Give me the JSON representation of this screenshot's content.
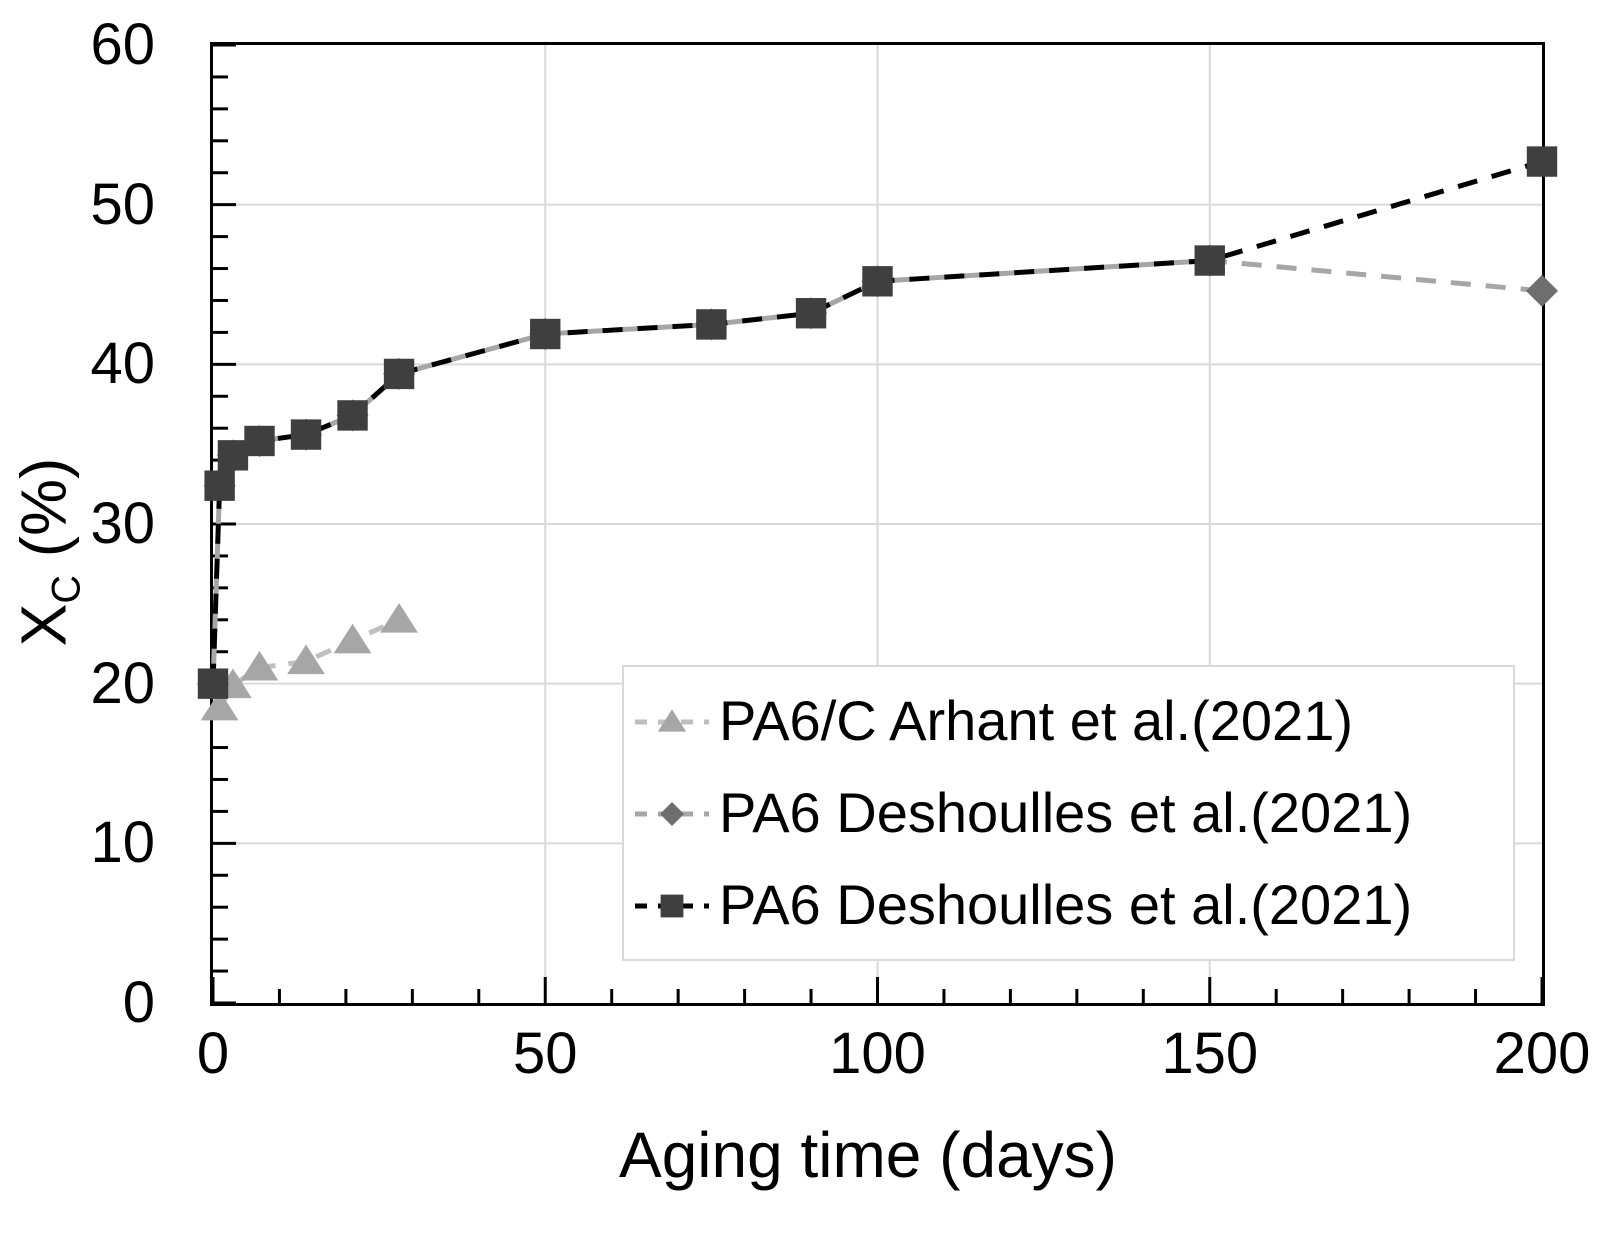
{
  "chart_data": {
    "type": "line",
    "title": "",
    "xlabel": "Aging time (days)",
    "ylabel": {
      "main": "X",
      "sub": "C",
      "rest": " (%)"
    },
    "xlim": [
      0,
      200
    ],
    "ylim": [
      0,
      60
    ],
    "x_major_ticks": [
      0,
      50,
      100,
      150,
      200
    ],
    "x_minor_step": 10,
    "y_major_ticks": [
      0,
      10,
      20,
      30,
      40,
      50,
      60
    ],
    "y_minor_step": 2,
    "grid": {
      "color": "#d9d9d9",
      "x_lines": [
        50,
        100,
        150
      ],
      "y_lines": [
        10,
        20,
        30,
        40,
        50
      ]
    },
    "frame_color": "#000000",
    "legend_position": "inside-lower-right",
    "series": [
      {
        "name": "PA6/C Arhant et al.(2021)",
        "marker": "triangle",
        "marker_color": "#a6a6a6",
        "line_color": "#bfbfbf",
        "points": [
          [
            1,
            18.5
          ],
          [
            3,
            19.9
          ],
          [
            7,
            21.0
          ],
          [
            14,
            21.4
          ],
          [
            21,
            22.7
          ],
          [
            28,
            24.0
          ]
        ]
      },
      {
        "name": "PA6 Deshoulles et al.(2021)",
        "marker": "diamond",
        "marker_color": "#6e6e6e",
        "line_color": "#a6a6a6",
        "points": [
          [
            0,
            20.0
          ],
          [
            1,
            32.4
          ],
          [
            3,
            34.3
          ],
          [
            7,
            35.2
          ],
          [
            14,
            35.6
          ],
          [
            21,
            36.8
          ],
          [
            28,
            39.4
          ],
          [
            50,
            41.9
          ],
          [
            75,
            42.5
          ],
          [
            90,
            43.2
          ],
          [
            100,
            45.2
          ],
          [
            150,
            46.5
          ],
          [
            200,
            44.6
          ]
        ]
      },
      {
        "name": "PA6 Deshoulles et al.(2021)",
        "marker": "square",
        "marker_color": "#3f3f3f",
        "line_color": "#000000",
        "points": [
          [
            0,
            20.0
          ],
          [
            1,
            32.4
          ],
          [
            3,
            34.3
          ],
          [
            7,
            35.2
          ],
          [
            14,
            35.6
          ],
          [
            21,
            36.8
          ],
          [
            28,
            39.4
          ],
          [
            50,
            41.9
          ],
          [
            75,
            42.5
          ],
          [
            90,
            43.2
          ],
          [
            100,
            45.2
          ],
          [
            150,
            46.5
          ],
          [
            200,
            52.7
          ]
        ]
      }
    ]
  }
}
